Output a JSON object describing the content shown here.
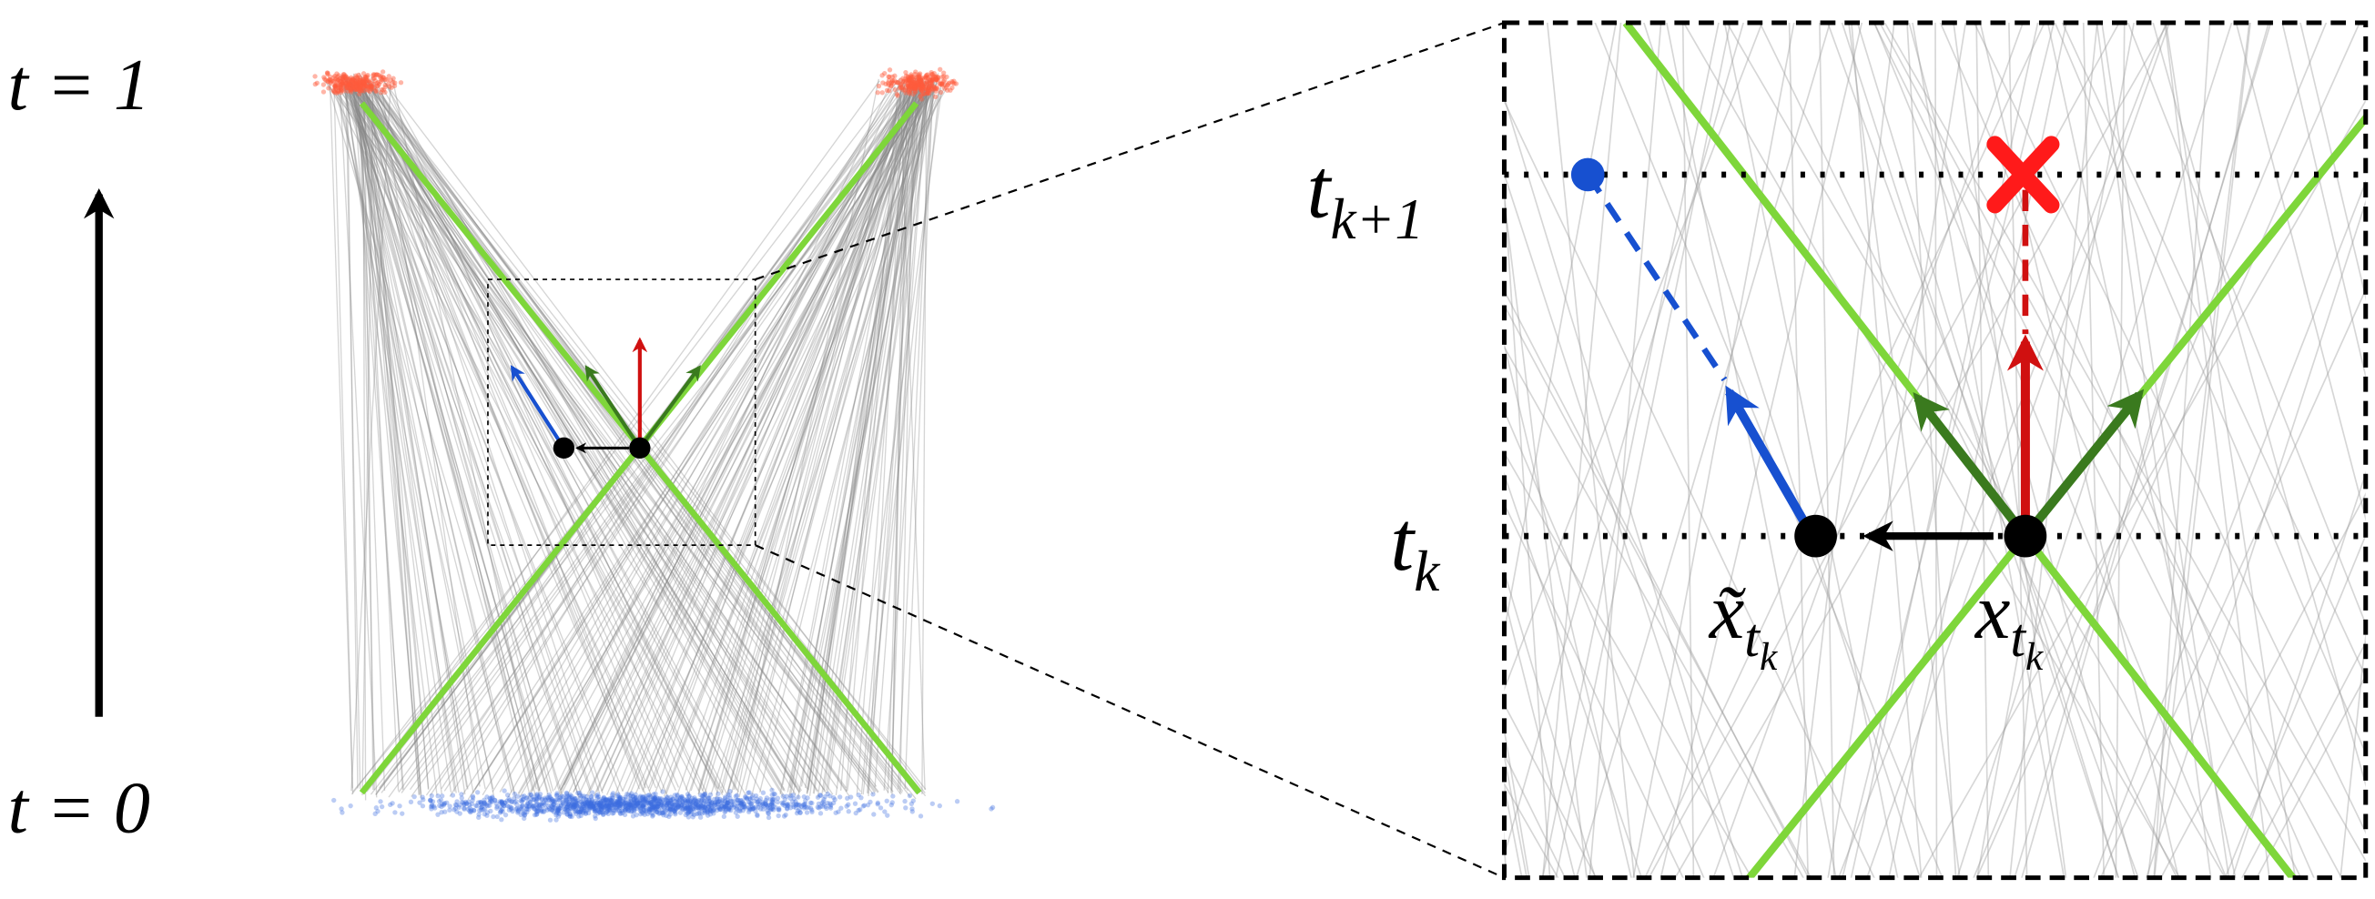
{
  "left_panel": {
    "top_label": "t = 1",
    "bottom_label": "t = 0"
  },
  "zoom_panel": {
    "upper_time": {
      "base": "t",
      "subscript": "k+1"
    },
    "lower_time": {
      "base": "t",
      "subscript": "k"
    },
    "perturbed_point": {
      "base": "x̃",
      "subscript": "t",
      "subsubscript": "k"
    },
    "point": {
      "base": "x",
      "subscript": "t",
      "subsubscript": "k"
    }
  }
}
